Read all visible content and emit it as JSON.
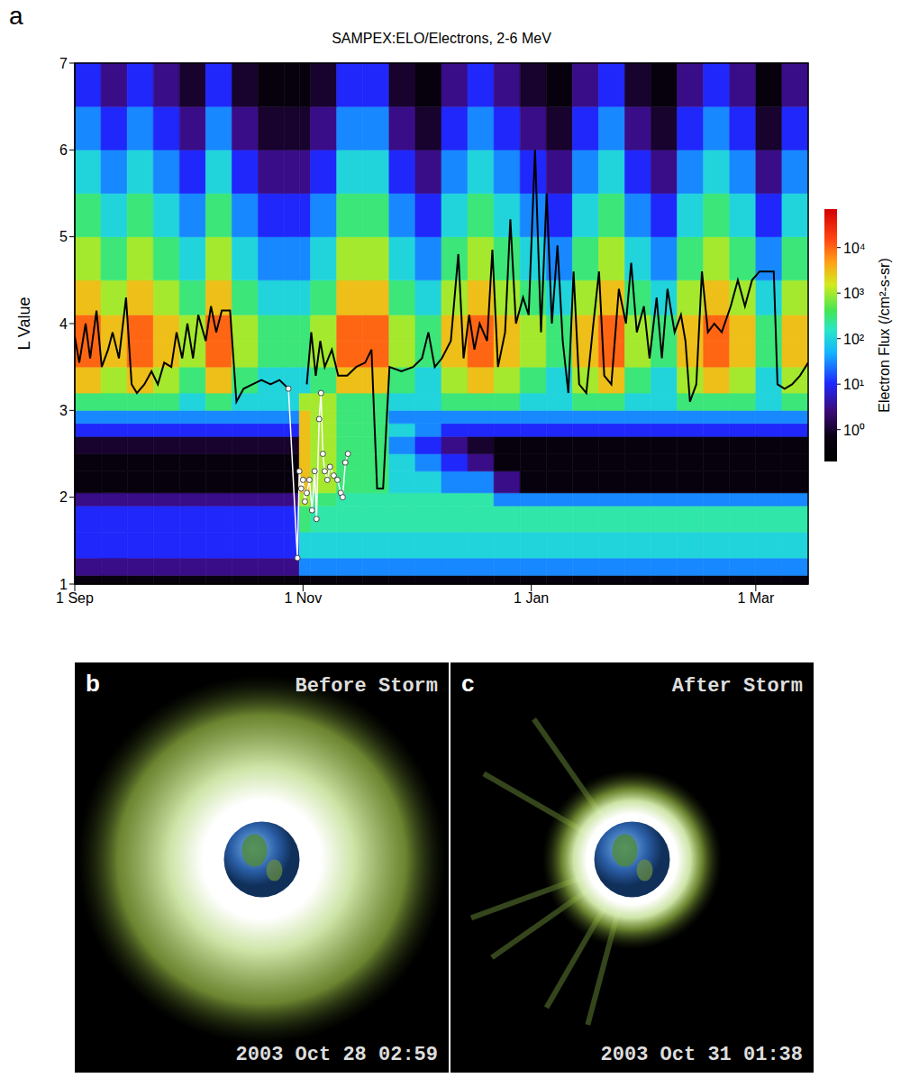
{
  "chart_data": {
    "type": "heatmap",
    "panel": "a",
    "title": "SAMPEX:ELO/Electrons, 2-6 MeV",
    "ylabel": "L Value",
    "xlim": [
      0,
      196
    ],
    "xticks": [
      {
        "value": 0,
        "label": "1 Sep"
      },
      {
        "value": 61,
        "label": "1 Nov"
      },
      {
        "value": 122,
        "label": "1 Jan"
      },
      {
        "value": 182,
        "label": "1 Mar"
      }
    ],
    "ylim": [
      1,
      7
    ],
    "yticks": [
      1,
      2,
      3,
      4,
      5,
      6,
      7
    ],
    "x_edges": [
      0,
      7,
      14,
      21,
      28,
      35,
      42,
      49,
      56,
      60,
      63,
      70,
      77,
      84,
      91,
      98,
      105,
      112,
      119,
      126,
      133,
      140,
      147,
      154,
      161,
      168,
      175,
      182,
      189,
      196
    ],
    "y_edges": [
      1,
      1.1,
      1.3,
      1.6,
      1.9,
      2.05,
      2.3,
      2.5,
      2.7,
      2.85,
      3,
      3.2,
      3.5,
      3.8,
      4.1,
      4.5,
      5,
      5.5,
      6,
      6.5,
      7
    ],
    "cells": [
      [
        0.5,
        0.5,
        0.5,
        0.5,
        0.5,
        0.5,
        0.5,
        0.5,
        0.5,
        0.5,
        0.5,
        0.5,
        0.5,
        0.5,
        0.5,
        0.5,
        0.5,
        0.5,
        0.5,
        0.5,
        0.5,
        0.5,
        0.5,
        0.5,
        0.5,
        0.5,
        0.5,
        0.5,
        0.5
      ],
      [
        3,
        3,
        3,
        3,
        3,
        3,
        3,
        3,
        3,
        30,
        30,
        30,
        30,
        30,
        30,
        30,
        30,
        30,
        30,
        30,
        30,
        30,
        30,
        30,
        30,
        30,
        30,
        30,
        30
      ],
      [
        10,
        10,
        10,
        10,
        10,
        10,
        10,
        10,
        10,
        100,
        100,
        100,
        100,
        100,
        100,
        100,
        100,
        100,
        100,
        100,
        100,
        100,
        100,
        100,
        100,
        100,
        100,
        100,
        100
      ],
      [
        10,
        10,
        10,
        10,
        10,
        10,
        10,
        10,
        10,
        300,
        200,
        200,
        200,
        200,
        200,
        200,
        200,
        200,
        200,
        200,
        200,
        200,
        200,
        200,
        200,
        200,
        200,
        200,
        200
      ],
      [
        3,
        3,
        3,
        3,
        3,
        3,
        3,
        3,
        3,
        1000,
        300,
        200,
        200,
        200,
        200,
        200,
        200,
        30,
        30,
        30,
        30,
        30,
        30,
        30,
        30,
        30,
        30,
        30,
        30
      ],
      [
        0.5,
        0.5,
        0.5,
        0.5,
        0.5,
        0.5,
        0.5,
        0.5,
        0.5,
        3000,
        1000,
        300,
        300,
        100,
        100,
        30,
        30,
        3,
        0.5,
        0.5,
        0.5,
        0.5,
        0.5,
        0.5,
        0.5,
        0.5,
        0.5,
        0.5,
        0.5
      ],
      [
        0.5,
        0.5,
        0.5,
        0.5,
        0.5,
        0.5,
        0.5,
        0.5,
        0.5,
        3000,
        1000,
        300,
        300,
        100,
        30,
        10,
        3,
        0.5,
        0.5,
        0.5,
        0.5,
        0.5,
        0.5,
        0.5,
        0.5,
        0.5,
        0.5,
        0.5,
        0.5
      ],
      [
        1,
        1,
        1,
        1,
        1,
        1,
        1,
        1,
        1,
        3000,
        1000,
        300,
        300,
        30,
        10,
        3,
        1,
        0.5,
        0.5,
        0.5,
        0.5,
        0.5,
        0.5,
        0.5,
        0.5,
        0.5,
        0.5,
        0.5,
        0.5
      ],
      [
        10,
        10,
        10,
        10,
        10,
        10,
        10,
        10,
        10,
        3000,
        1000,
        300,
        300,
        100,
        30,
        10,
        10,
        10,
        10,
        10,
        10,
        10,
        10,
        10,
        10,
        10,
        10,
        10,
        10
      ],
      [
        30,
        30,
        30,
        30,
        30,
        30,
        30,
        30,
        30,
        3000,
        1000,
        300,
        300,
        30,
        30,
        30,
        30,
        30,
        30,
        30,
        30,
        30,
        30,
        30,
        30,
        30,
        30,
        30,
        30
      ],
      [
        300,
        300,
        300,
        300,
        100,
        300,
        100,
        100,
        100,
        1000,
        1000,
        300,
        300,
        100,
        100,
        300,
        300,
        300,
        100,
        100,
        300,
        300,
        100,
        100,
        300,
        300,
        300,
        100,
        300
      ],
      [
        3000,
        1000,
        3000,
        1000,
        300,
        3000,
        300,
        100,
        100,
        100,
        300,
        3000,
        3000,
        300,
        100,
        1000,
        3000,
        1000,
        300,
        100,
        1000,
        3000,
        300,
        100,
        1000,
        3000,
        1000,
        100,
        1000
      ],
      [
        10000,
        3000,
        10000,
        3000,
        1000,
        10000,
        1000,
        300,
        300,
        300,
        1000,
        10000,
        10000,
        1000,
        300,
        3000,
        10000,
        3000,
        1000,
        300,
        3000,
        10000,
        1000,
        300,
        3000,
        10000,
        3000,
        300,
        3000
      ],
      [
        10000,
        3000,
        10000,
        3000,
        1000,
        10000,
        1000,
        300,
        300,
        300,
        1000,
        10000,
        10000,
        1000,
        300,
        3000,
        10000,
        3000,
        1000,
        300,
        3000,
        10000,
        1000,
        300,
        3000,
        10000,
        3000,
        300,
        3000
      ],
      [
        3000,
        1000,
        3000,
        1000,
        300,
        3000,
        300,
        100,
        100,
        100,
        300,
        3000,
        3000,
        300,
        100,
        1000,
        3000,
        1000,
        300,
        100,
        1000,
        3000,
        300,
        100,
        1000,
        3000,
        1000,
        100,
        1000
      ],
      [
        1000,
        300,
        1000,
        300,
        100,
        1000,
        100,
        30,
        30,
        30,
        100,
        1000,
        1000,
        100,
        30,
        300,
        1000,
        300,
        100,
        30,
        300,
        1000,
        100,
        30,
        300,
        1000,
        300,
        30,
        300
      ],
      [
        300,
        100,
        300,
        100,
        30,
        300,
        30,
        10,
        10,
        10,
        30,
        300,
        300,
        30,
        10,
        100,
        300,
        100,
        30,
        10,
        100,
        300,
        30,
        10,
        100,
        300,
        100,
        10,
        100
      ],
      [
        100,
        30,
        100,
        30,
        10,
        100,
        10,
        3,
        3,
        3,
        10,
        100,
        100,
        10,
        3,
        30,
        100,
        30,
        10,
        3,
        30,
        100,
        10,
        3,
        30,
        100,
        30,
        3,
        30
      ],
      [
        30,
        10,
        30,
        10,
        3,
        30,
        3,
        1,
        1,
        1,
        3,
        30,
        30,
        3,
        1,
        10,
        30,
        10,
        3,
        1,
        10,
        30,
        3,
        1,
        10,
        30,
        10,
        1,
        10
      ],
      [
        10,
        3,
        10,
        3,
        1,
        10,
        1,
        0.5,
        0.5,
        0.5,
        1,
        10,
        10,
        1,
        0.5,
        3,
        10,
        3,
        1,
        0.5,
        3,
        10,
        1,
        0.5,
        3,
        10,
        3,
        0.5,
        3
      ]
    ],
    "colorbar": {
      "label": "Electron Flux (/cm²-s-sr)",
      "range": [
        0.2,
        70000
      ],
      "log": true,
      "ticks": [
        {
          "value": 1,
          "label": "10⁰"
        },
        {
          "value": 10,
          "label": "10¹"
        },
        {
          "value": 100,
          "label": "10²"
        },
        {
          "value": 1000,
          "label": "10³"
        },
        {
          "value": 10000,
          "label": "10⁴"
        }
      ]
    },
    "series": [
      {
        "type": "line",
        "color": "#000000",
        "x": [
          0,
          1.2,
          2.9,
          4.1,
          5.8,
          7.2,
          8.9,
          10.1,
          11.8,
          13.7,
          15.2,
          16.6,
          18.6,
          20.5,
          22.2,
          23.9,
          25.8,
          27.2,
          28.7,
          30.1,
          31.6,
          33,
          35,
          36.4,
          37.8,
          39.3,
          41.5,
          43.2,
          45.1,
          47.5,
          49.9,
          52.3,
          54.7,
          57.1,
          59,
          62,
          63.2,
          64.4,
          65.6,
          66.8,
          68.7,
          70.4,
          72.8,
          75.2,
          77.6,
          79.3,
          80.8,
          82.4,
          84.1,
          87.3,
          90.4,
          92.8,
          94.5,
          96.2,
          98.1,
          100.5,
          102.5,
          103.9,
          105.4,
          106.8,
          108.2,
          110.2,
          111.6,
          113.1,
          115,
          116.4,
          117.9,
          119.8,
          121.3,
          123,
          124.6,
          126.1,
          127.5,
          129,
          130.4,
          131.9,
          133.3,
          134.8,
          136.7,
          138.6,
          140.1,
          141.5,
          143.4,
          145.4,
          147.3,
          148.7,
          150.2,
          152.1,
          153.6,
          155.5,
          156.9,
          158.4,
          160.3,
          162,
          163.2,
          164.4,
          166.1,
          167.6,
          169.2,
          170.9,
          172.9,
          175.3,
          177.2,
          179.1,
          181,
          183,
          185.4,
          186.8,
          187.8,
          189.7,
          191.7,
          193.8,
          196
        ],
        "values": [
          3.85,
          3.55,
          4,
          3.6,
          4.15,
          3.5,
          3.7,
          3.9,
          3.6,
          4.3,
          3.3,
          3.2,
          3.3,
          3.45,
          3.3,
          3.55,
          3.5,
          3.9,
          3.6,
          4,
          3.6,
          4.1,
          3.8,
          4.2,
          3.9,
          4.15,
          4.15,
          3.1,
          3.25,
          3.3,
          3.35,
          3.3,
          3.35,
          3.25,
          null,
          3.3,
          3.9,
          3.4,
          3.8,
          3.5,
          3.7,
          3.4,
          3.4,
          3.5,
          3.55,
          3.7,
          2.1,
          2.1,
          3.5,
          3.45,
          3.5,
          3.6,
          3.9,
          3.5,
          3.6,
          3.8,
          4.8,
          3.6,
          4.1,
          3.7,
          4,
          3.8,
          4.85,
          3.5,
          3.9,
          5.2,
          4,
          4.3,
          4.1,
          6,
          3.9,
          5.5,
          4,
          4.9,
          3.8,
          3.2,
          4.6,
          3.3,
          3.2,
          4,
          4.6,
          3.4,
          3.3,
          4.4,
          4,
          4.7,
          3.9,
          4.2,
          3.6,
          4.3,
          3.6,
          4.4,
          3.9,
          4.1,
          3.8,
          3.1,
          3.3,
          4.6,
          3.9,
          4,
          3.9,
          4.2,
          4.5,
          4.2,
          4.5,
          4.6,
          4.6,
          4.6,
          3.3,
          3.25,
          3.3,
          3.4,
          3.55
        ]
      },
      {
        "type": "line",
        "color": "#ffffff",
        "marker": "circle",
        "x": [
          57.1,
          59.5,
          60,
          60.5,
          61,
          61.5,
          62,
          62.7,
          63.4,
          64.1,
          64.6,
          65.3,
          65.8,
          66.3,
          66.8,
          67.5,
          68.2,
          69.2,
          70.2,
          71.1,
          71.6,
          72.3,
          73
        ],
        "values": [
          3.25,
          1.3,
          2.3,
          2.1,
          2.2,
          1.95,
          2.05,
          2.2,
          1.85,
          2.3,
          1.75,
          2.9,
          3.2,
          2.5,
          2.3,
          2.2,
          2.35,
          2.25,
          2.2,
          2.05,
          2,
          2.4,
          2.5
        ]
      }
    ]
  },
  "images": [
    {
      "panel": "b",
      "title": "Before Storm",
      "timestamp": "2003 Oct 28 02:59"
    },
    {
      "panel": "c",
      "title": "After Storm",
      "timestamp": "2003 Oct 31 01:38"
    }
  ]
}
